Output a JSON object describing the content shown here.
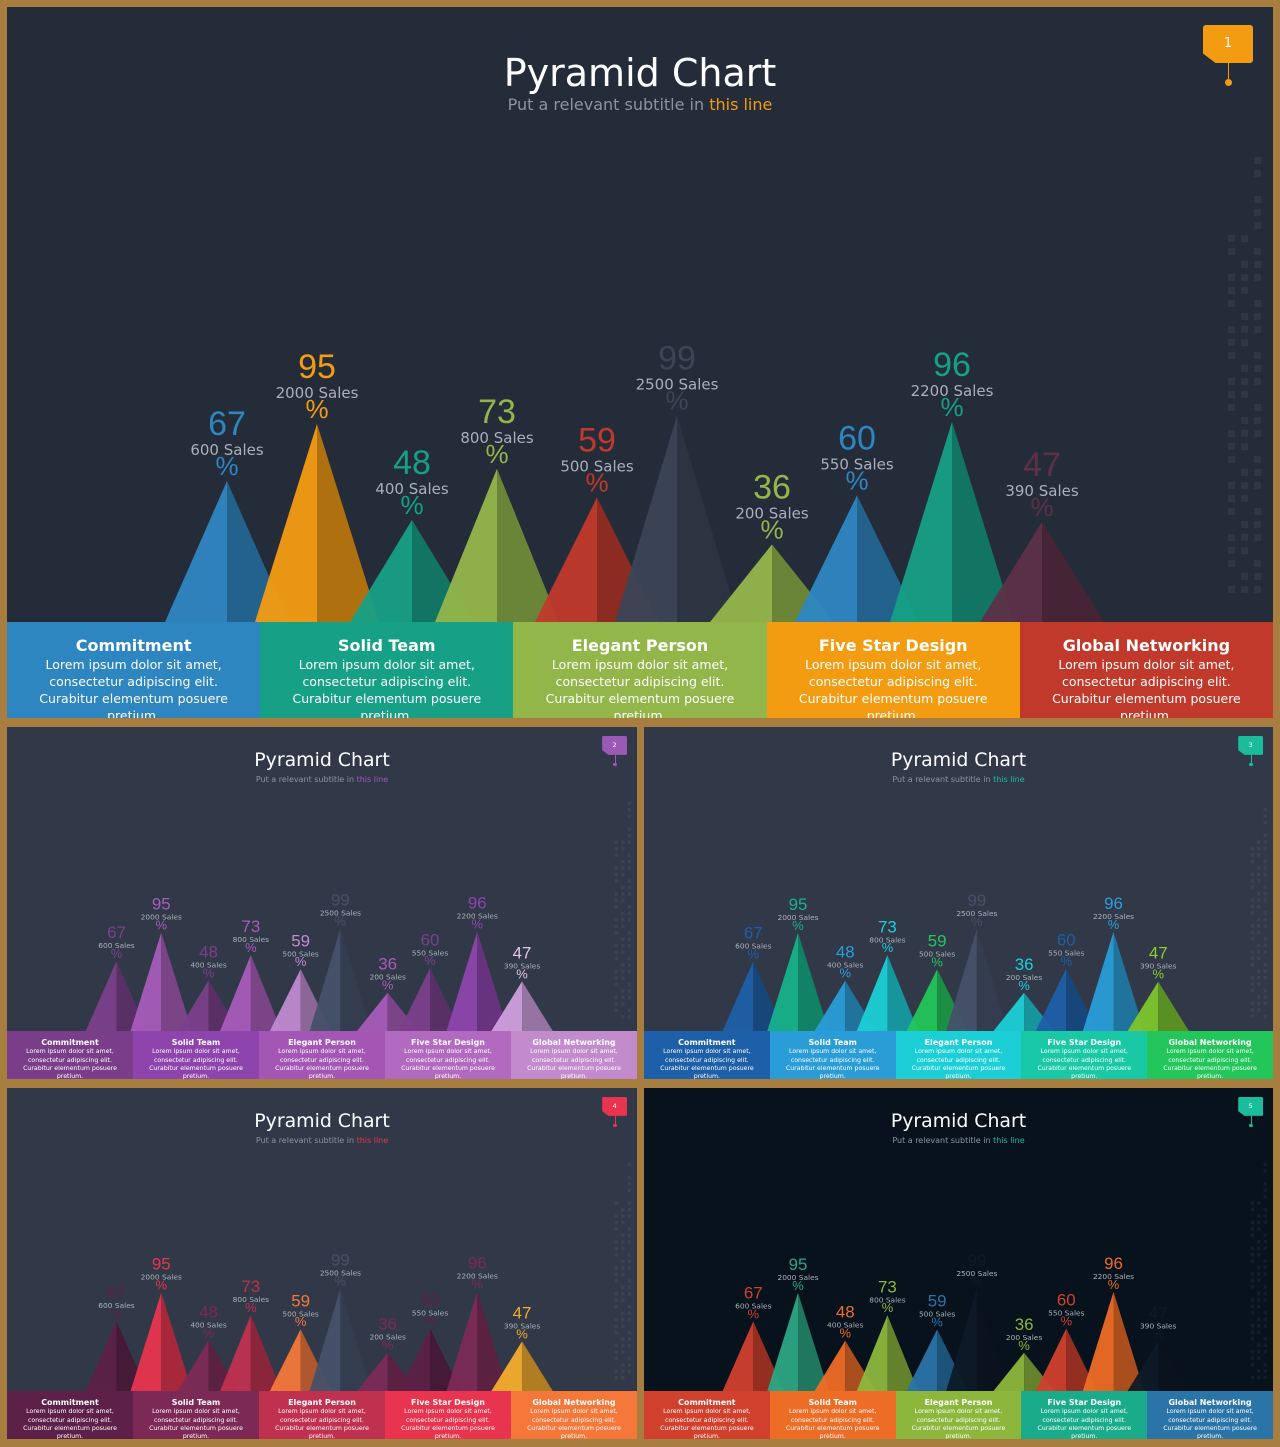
{
  "slides": [
    {
      "number": "1",
      "title": "Pyramid Chart",
      "subtitle_prefix": "Put a relevant subtitle in ",
      "subtitle_highlight": "this line",
      "accent": "#f39c12",
      "background": "#252c39",
      "card_colors": [
        "#2e86c1",
        "#16a085",
        "#93b64a",
        "#f39c12",
        "#c0392b"
      ],
      "pyramid_colors": [
        "#2e86c1",
        "#f39c12",
        "#16a085",
        "#93b64a",
        "#c0392b",
        "#3b4556",
        "#93b64a",
        "#2e86c1",
        "#16a085",
        "#5d3047"
      ],
      "value_colors": [
        "#2e86c1",
        "#f39c12",
        "#16a085",
        "#93b64a",
        "#c0392b",
        "#3b4556",
        "#93b64a",
        "#2e86c1",
        "#16a085",
        "#5d3047"
      ]
    },
    {
      "number": "2",
      "title": "Pyramid Chart",
      "subtitle_prefix": "Put a relevant subtitle in ",
      "subtitle_highlight": "this line",
      "accent": "#9b59b6",
      "background": "#313949",
      "card_colors": [
        "#7a3d8a",
        "#8e44ad",
        "#a456b5",
        "#b26ac0",
        "#c28bcc"
      ],
      "pyramid_colors": [
        "#7b3f8b",
        "#a85cb9",
        "#7b3f8b",
        "#a85cb9",
        "#c08ad0",
        "#46506a",
        "#a85cb9",
        "#7b3f8b",
        "#8e44ad",
        "#cf9fdd"
      ],
      "value_colors": [
        "#7b3f8b",
        "#a85cb9",
        "#7b3f8b",
        "#a85cb9",
        "#c08ad0",
        "#46506a",
        "#a85cb9",
        "#7b3f8b",
        "#8e44ad",
        "#e1c6ea"
      ]
    },
    {
      "number": "3",
      "title": "Pyramid Chart",
      "subtitle_prefix": "Put a relevant subtitle in ",
      "subtitle_highlight": "this line",
      "accent": "#1abc9c",
      "background": "#313949",
      "card_colors": [
        "#1d5fa8",
        "#2a9dd8",
        "#1ccfd6",
        "#19c9a5",
        "#22c65b"
      ],
      "pyramid_colors": [
        "#1d5fa8",
        "#16b28a",
        "#2a9dd8",
        "#1ccfd6",
        "#22c65b",
        "#46506a",
        "#1ccfd6",
        "#1d5fa8",
        "#2a9dd8",
        "#7cc52d"
      ],
      "value_colors": [
        "#1d5fa8",
        "#16b28a",
        "#2a9dd8",
        "#1ccfd6",
        "#22c65b",
        "#46506a",
        "#1ccfd6",
        "#1d5fa8",
        "#2a9dd8",
        "#8ccf2e"
      ]
    },
    {
      "number": "4",
      "title": "Pyramid Chart",
      "subtitle_prefix": "Put a relevant subtitle in ",
      "subtitle_highlight": "this line",
      "accent": "#e8344e",
      "background": "#313949",
      "card_colors": [
        "#5d2048",
        "#7c2a55",
        "#c0304f",
        "#e8344e",
        "#f5773a"
      ],
      "pyramid_colors": [
        "#5d2048",
        "#e8344e",
        "#7c2a55",
        "#c0304f",
        "#f5773a",
        "#46506a",
        "#7c2a55",
        "#5d2048",
        "#7c2a55",
        "#f5ac2d"
      ],
      "value_colors": [
        "#5d2048",
        "#e8344e",
        "#7c2a55",
        "#c0304f",
        "#f5773a",
        "#46506a",
        "#7c2a55",
        "#5d2048",
        "#7c2a55",
        "#f5ac2d"
      ]
    },
    {
      "number": "5",
      "title": "Pyramid Chart",
      "subtitle_prefix": "Put a relevant subtitle in ",
      "subtitle_highlight": "this line",
      "accent": "#1abc9c",
      "background": "#07121d",
      "card_colors": [
        "#d0402d",
        "#ee6d26",
        "#8cb73c",
        "#1aac8a",
        "#2a74a8"
      ],
      "pyramid_colors": [
        "#d0402d",
        "#2ca783",
        "#ee6d26",
        "#8cb73c",
        "#2a74a8",
        "#0e1a27",
        "#8cb73c",
        "#d0402d",
        "#ee6d26",
        "#0e1a27"
      ],
      "value_colors": [
        "#d0402d",
        "#2ca783",
        "#ee6d26",
        "#8cb73c",
        "#2a74a8",
        "#0e1a27",
        "#8cb73c",
        "#d0402d",
        "#ee6d26",
        "#0e1a27"
      ]
    }
  ],
  "cards": [
    {
      "title": "Commitment",
      "body": "Lorem ipsum dolor sit amet, consectetur adipiscing elit. Curabitur elementum posuere pretium."
    },
    {
      "title": "Solid Team",
      "body": "Lorem ipsum dolor sit amet, consectetur adipiscing elit. Curabitur elementum posuere pretium."
    },
    {
      "title": "Elegant Person",
      "body": "Lorem ipsum dolor sit amet, consectetur adipiscing elit. Curabitur elementum posuere pretium."
    },
    {
      "title": "Five Star Design",
      "body": "Lorem ipsum dolor sit amet, consectetur adipiscing elit. Curabitur elementum posuere pretium."
    },
    {
      "title": "Global Networking",
      "body": "Lorem ipsum dolor sit amet, consectetur adipiscing elit. Curabitur elementum posuere pretium."
    }
  ],
  "chart_data": {
    "type": "bar",
    "title": "Pyramid Chart",
    "values": [
      67,
      95,
      48,
      73,
      59,
      99,
      36,
      60,
      96,
      47
    ],
    "value_suffix": "%",
    "sales_labels": [
      "600 Sales",
      "2000 Sales",
      "400 Sales",
      "800 Sales",
      "500 Sales",
      "2500 Sales",
      "200 Sales",
      "550 Sales",
      "2200 Sales",
      "390 Sales"
    ],
    "ylim": [
      0,
      100
    ]
  }
}
